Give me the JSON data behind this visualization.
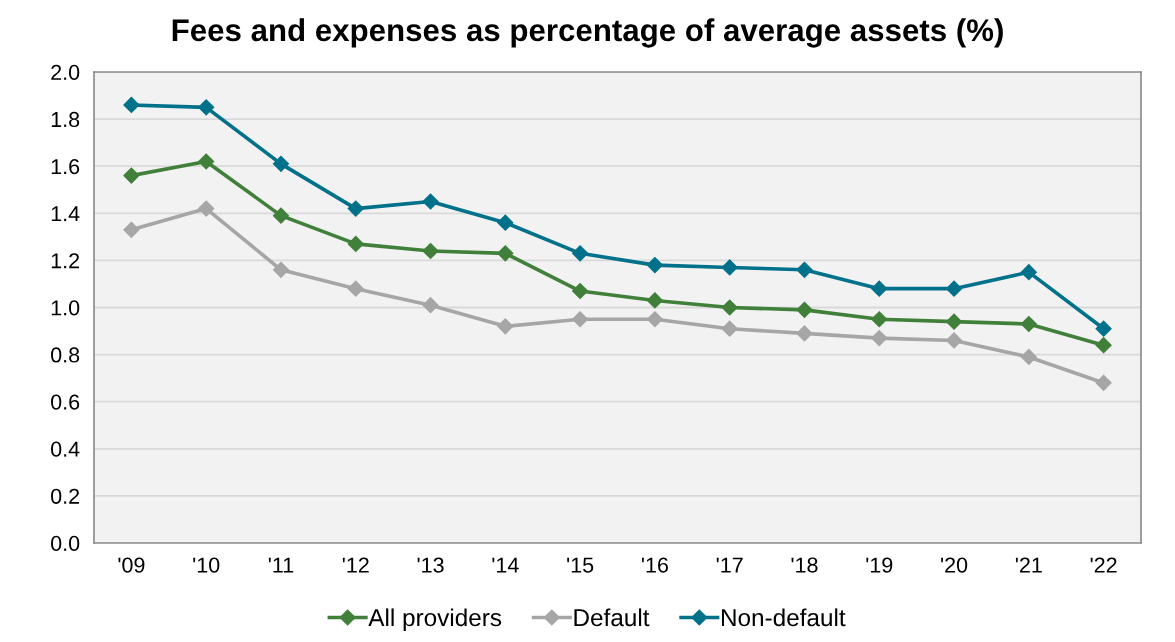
{
  "chart_data": {
    "type": "line",
    "title": "Fees and expenses as percentage of average assets (%)",
    "categories": [
      "'09",
      "'10",
      "'11",
      "'12",
      "'13",
      "'14",
      "'15",
      "'16",
      "'17",
      "'18",
      "'19",
      "'20",
      "'21",
      "'22"
    ],
    "series": [
      {
        "name": "All providers",
        "color": "#41803a",
        "values": [
          1.56,
          1.62,
          1.39,
          1.27,
          1.24,
          1.23,
          1.07,
          1.03,
          1.0,
          0.99,
          0.95,
          0.94,
          0.93,
          0.84
        ]
      },
      {
        "name": "Default",
        "color": "#a6a6a6",
        "values": [
          1.33,
          1.42,
          1.16,
          1.08,
          1.01,
          0.92,
          0.95,
          0.95,
          0.91,
          0.89,
          0.87,
          0.86,
          0.79,
          0.68
        ]
      },
      {
        "name": "Non-default",
        "color": "#00718a",
        "values": [
          1.86,
          1.85,
          1.61,
          1.42,
          1.45,
          1.36,
          1.23,
          1.18,
          1.17,
          1.16,
          1.08,
          1.08,
          1.15,
          0.91
        ]
      }
    ],
    "ylim": [
      0,
      2.0
    ],
    "yticks": [
      {
        "value": 0,
        "label": "0.0"
      },
      {
        "value": 0.2,
        "label": "0.2"
      },
      {
        "value": 0.4,
        "label": "0.4"
      },
      {
        "value": 0.6,
        "label": "0.6"
      },
      {
        "value": 0.8,
        "label": "0.8"
      },
      {
        "value": 1.0,
        "label": "1.0"
      },
      {
        "value": 1.2,
        "label": "1.2"
      },
      {
        "value": 1.4,
        "label": "1.4"
      },
      {
        "value": 1.6,
        "label": "1.6"
      },
      {
        "value": 1.8,
        "label": "1.8"
      },
      {
        "value": 2.0,
        "label": "2.0"
      }
    ],
    "grid": "y",
    "legend": "bottom",
    "marker": "diamond",
    "line_style": "solid"
  }
}
